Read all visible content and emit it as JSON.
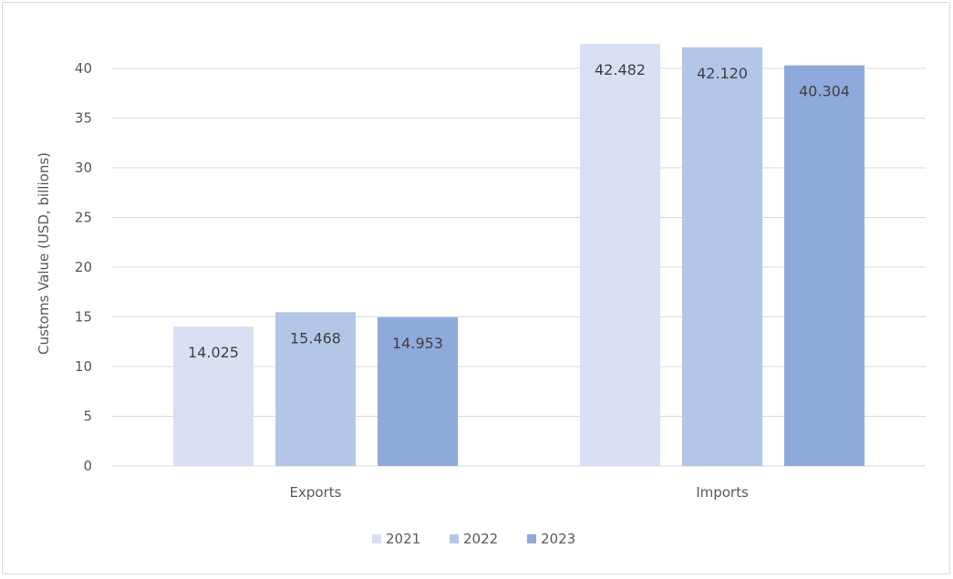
{
  "chart_data": {
    "type": "bar",
    "categories": [
      "Exports",
      "Imports"
    ],
    "series": [
      {
        "name": "2021",
        "values": [
          14.025,
          42.482
        ],
        "labels": [
          "14.025",
          "42.482"
        ],
        "color": "#dae0f4"
      },
      {
        "name": "2022",
        "values": [
          15.468,
          42.12
        ],
        "labels": [
          "15.468",
          "42.120"
        ],
        "color": "#b3c6e8"
      },
      {
        "name": "2023",
        "values": [
          14.953,
          40.304
        ],
        "labels": [
          "14.953",
          "40.304"
        ],
        "color": "#8eaadc"
      }
    ],
    "title": "",
    "xlabel": "",
    "ylabel": "Customs Value (USD, billions)",
    "ylim": [
      0,
      40
    ],
    "yticks": [
      0,
      5,
      10,
      15,
      20,
      25,
      30,
      35,
      40
    ],
    "grid": true,
    "legend": "bottom"
  }
}
